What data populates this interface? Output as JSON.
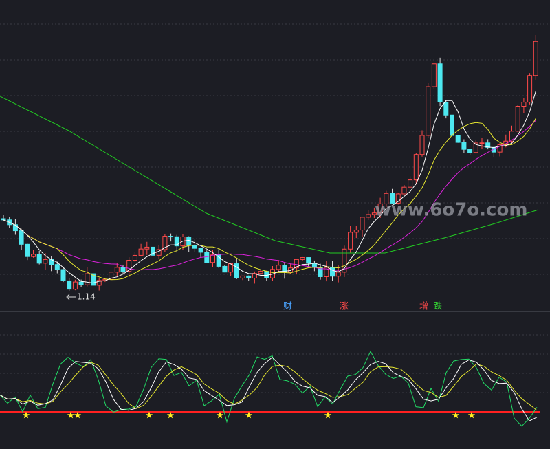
{
  "main_panel": {
    "low_marker": "1.14",
    "event_labels": [
      "财",
      "涨",
      "增",
      "跌"
    ],
    "watermark": "www.6o7o.com"
  }
}
